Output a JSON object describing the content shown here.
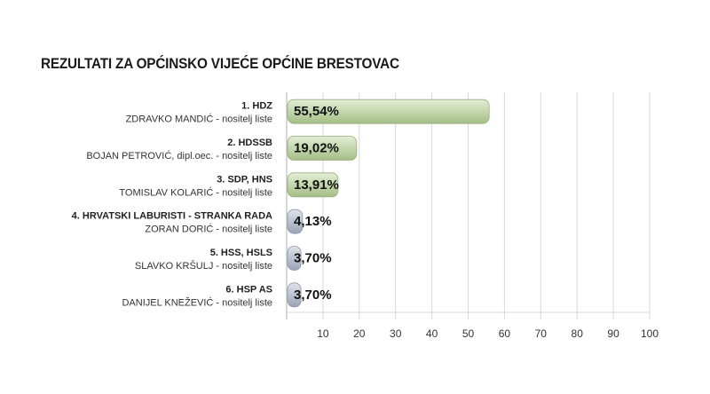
{
  "title": "REZULTATI ZA OPĆINSKO VIJEĆE OPĆINE BRESTOVAC",
  "colors": {
    "major_bar": "#b9cfa0",
    "minor_bar": "#b4bccb",
    "grid": "#d9d9d9",
    "axis": "#b0b0b0"
  },
  "chart_data": {
    "type": "bar",
    "orientation": "horizontal",
    "title": "REZULTATI ZA OPĆINSKO VIJEĆE OPĆINE BRESTOVAC",
    "categories": [
      {
        "party": "1. HDZ",
        "leader": "ZDRAVKO MANDIĆ - nositelj liste"
      },
      {
        "party": "2. HDSSB",
        "leader": "BOJAN PETROVIĆ, dipl.oec. - nositelj liste"
      },
      {
        "party": "3. SDP, HNS",
        "leader": "TOMISLAV KOLARIĆ - nositelj liste"
      },
      {
        "party": "4. HRVATSKI LABURISTI - STRANKA RADA",
        "leader": "ZORAN DORIĆ - nositelj liste"
      },
      {
        "party": "5. HSS, HSLS",
        "leader": "SLAVKO KRŠULJ - nositelj liste"
      },
      {
        "party": "6. HSP AS",
        "leader": "DANIJEL KNEŽEVIĆ - nositelj liste"
      }
    ],
    "values": [
      55.54,
      19.02,
      13.91,
      4.13,
      3.7,
      3.7
    ],
    "value_labels": [
      "55,54%",
      "19,02%",
      "13,91%",
      "4,13%",
      "3,70%",
      "3,70%"
    ],
    "xlim": [
      0,
      100
    ],
    "xticks": [
      "10",
      "20",
      "30",
      "40",
      "50",
      "60",
      "70",
      "80",
      "90",
      "100"
    ],
    "grid": true,
    "xlabel": "",
    "ylabel": ""
  }
}
